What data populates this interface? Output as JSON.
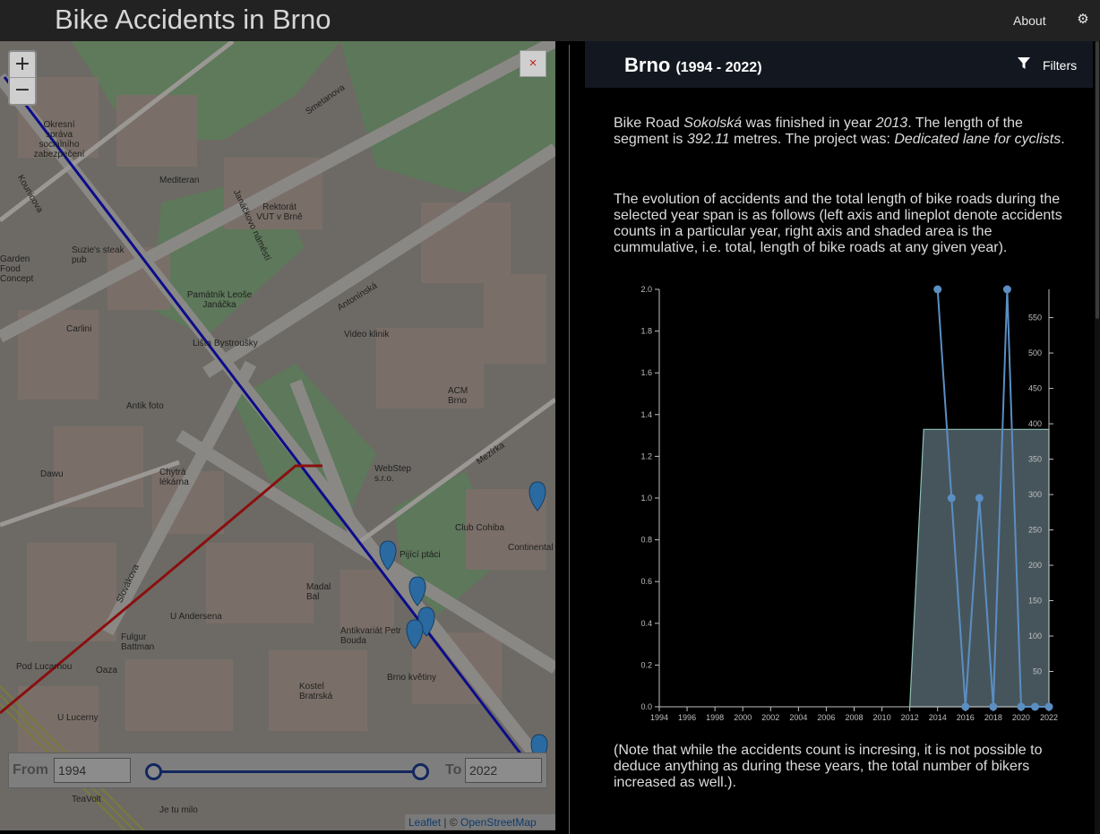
{
  "header": {
    "title": "Bike Accidents in Brno",
    "about": "About",
    "settings_icon": "gear-icon"
  },
  "map": {
    "zoom_in": "+",
    "zoom_out": "−",
    "close": "×",
    "slider": {
      "from_label": "From",
      "from_value": "1994",
      "to_label": "To",
      "to_value": "2022"
    },
    "attribution": {
      "leaflet": "Leaflet",
      "sep": " | © ",
      "osm": "OpenStreetMap"
    },
    "labels": [
      "Smetanova",
      "Kounicova",
      "Janáčkovo náměstí",
      "Antonínská",
      "Mezírka",
      "Slovákova",
      "Rektorát VUT v Brně",
      "Mediteran",
      "Suzie's steak pub",
      "Památník Leoše Janáčka",
      "Lišta Bystroušky",
      "Video klinik",
      "ACM Brno",
      "WebStep s.r.o.",
      "Club Cohiba",
      "Continental",
      "Antik foto",
      "Chytrá lékárna",
      "Dawu",
      "Fulgur Battman",
      "U Andersena",
      "Antikvariát Petr Bouda",
      "Brno květiny",
      "Kostel Bratrská",
      "Pijící ptáci",
      "Madal Bal",
      "U Lucerny",
      "Pod Lucarnou",
      "Oaza",
      "TeaVolt",
      "Je tu milo",
      "Carlini",
      "Okresní správa sociálního zabezpečení",
      "Garden Food Concept"
    ]
  },
  "panel": {
    "city": "Brno",
    "years": "(1994 - 2022)",
    "filters": "Filters",
    "p1": {
      "a": "Bike Road ",
      "road": "Sokolská",
      "b": " was finished in year ",
      "year": "2013",
      "c": ". The length of the segment is ",
      "length": "392.11",
      "d": " metres. The project was: ",
      "project": "Dedicated lane for cyclists",
      "e": "."
    },
    "p2": "The evolution of accidents and the total length of bike roads during the selected year span is as follows (left axis and lineplot denote accidents counts in a particular year, right axis and shaded area is the cummulative, i.e. total, length of bike roads at any given year).",
    "p3": "(Note that while the accidents count is incresing, it is not possible to deduce anything as during these years, the total number of bikers increased as well.)."
  },
  "chart_data": {
    "type": "line",
    "x_ticks": [
      "1994",
      "1996",
      "1998",
      "2000",
      "2002",
      "2004",
      "2006",
      "2008",
      "2010",
      "2012",
      "2014",
      "2016",
      "2018",
      "2020",
      "2022"
    ],
    "y_left_ticks": [
      "0.0",
      "0.2",
      "0.4",
      "0.6",
      "0.8",
      "1.0",
      "1.2",
      "1.4",
      "1.6",
      "1.8",
      "2.0"
    ],
    "y_right_ticks": [
      "50",
      "100",
      "150",
      "200",
      "250",
      "300",
      "350",
      "400",
      "450",
      "500",
      "550"
    ],
    "xlim": [
      1994,
      2022
    ],
    "ylim_left": [
      0,
      2
    ],
    "ylim_right": [
      0,
      590
    ],
    "accidents": {
      "x": [
        2014,
        2015,
        2016,
        2017,
        2018,
        2019,
        2020,
        2021,
        2022
      ],
      "y": [
        2,
        1,
        0,
        1,
        0,
        2,
        0,
        0,
        0
      ]
    },
    "bike_road_length": {
      "x": [
        2012,
        2013,
        2022
      ],
      "y": [
        0,
        392.11,
        392.11
      ]
    },
    "colors": {
      "line": "#5b8ec2",
      "area_fill": "#46555c",
      "area_stroke": "#8fc1b5",
      "axis": "#bfbfbf"
    }
  }
}
